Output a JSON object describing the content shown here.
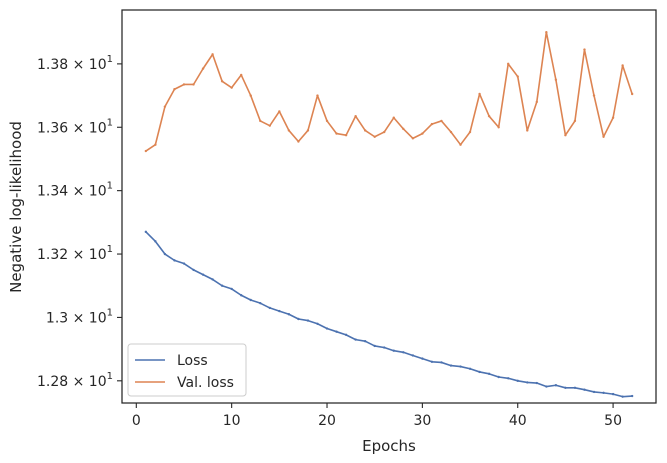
{
  "chart_data": {
    "type": "line",
    "xlabel": "Epochs",
    "ylabel": "Negative log-likelihood",
    "xlim": [
      -1.5,
      54.5
    ],
    "ylim": [
      12.73,
      13.97
    ],
    "xticks": [
      {
        "value": 0,
        "label": "0"
      },
      {
        "value": 10,
        "label": "10"
      },
      {
        "value": 20,
        "label": "20"
      },
      {
        "value": 30,
        "label": "30"
      },
      {
        "value": 40,
        "label": "40"
      },
      {
        "value": 50,
        "label": "50"
      }
    ],
    "yticks": [
      {
        "value": 12.8,
        "mantissa": "1.28",
        "exponent": "1"
      },
      {
        "value": 13.0,
        "mantissa": "1.3",
        "exponent": "1"
      },
      {
        "value": 13.2,
        "mantissa": "1.32",
        "exponent": "1"
      },
      {
        "value": 13.4,
        "mantissa": "1.34",
        "exponent": "1"
      },
      {
        "value": 13.6,
        "mantissa": "1.36",
        "exponent": "1"
      },
      {
        "value": 13.8,
        "mantissa": "1.38",
        "exponent": "1"
      }
    ],
    "y_tick_format": "× 10",
    "legend_position": "lower-left",
    "grid": false,
    "x": [
      1,
      2,
      3,
      4,
      5,
      6,
      7,
      8,
      9,
      10,
      11,
      12,
      13,
      14,
      15,
      16,
      17,
      18,
      19,
      20,
      21,
      22,
      23,
      24,
      25,
      26,
      27,
      28,
      29,
      30,
      31,
      32,
      33,
      34,
      35,
      36,
      37,
      38,
      39,
      40,
      41,
      42,
      43,
      44,
      45,
      46,
      47,
      48,
      49,
      50,
      51,
      52
    ],
    "series": [
      {
        "name": "Loss",
        "color": "#4c72b0",
        "values": [
          13.27,
          13.24,
          13.2,
          13.18,
          13.17,
          13.15,
          13.135,
          13.12,
          13.1,
          13.09,
          13.07,
          13.055,
          13.045,
          13.03,
          13.02,
          13.01,
          12.995,
          12.99,
          12.98,
          12.965,
          12.955,
          12.945,
          12.93,
          12.925,
          12.91,
          12.905,
          12.895,
          12.89,
          12.88,
          12.87,
          12.86,
          12.858,
          12.848,
          12.845,
          12.838,
          12.828,
          12.822,
          12.812,
          12.808,
          12.8,
          12.795,
          12.793,
          12.782,
          12.786,
          12.778,
          12.778,
          12.772,
          12.765,
          12.762,
          12.758,
          12.75,
          12.752
        ]
      },
      {
        "name": "Val. loss",
        "color": "#dd8452",
        "values": [
          13.525,
          13.545,
          13.665,
          13.72,
          13.735,
          13.735,
          13.785,
          13.83,
          13.745,
          13.725,
          13.765,
          13.7,
          13.62,
          13.605,
          13.65,
          13.59,
          13.555,
          13.59,
          13.7,
          13.62,
          13.58,
          13.575,
          13.635,
          13.59,
          13.57,
          13.585,
          13.63,
          13.595,
          13.565,
          13.58,
          13.61,
          13.62,
          13.585,
          13.545,
          13.585,
          13.705,
          13.635,
          13.6,
          13.8,
          13.76,
          13.59,
          13.68,
          13.9,
          13.75,
          13.575,
          13.62,
          13.845,
          13.7,
          13.57,
          13.63,
          13.795,
          13.705
        ]
      }
    ]
  }
}
